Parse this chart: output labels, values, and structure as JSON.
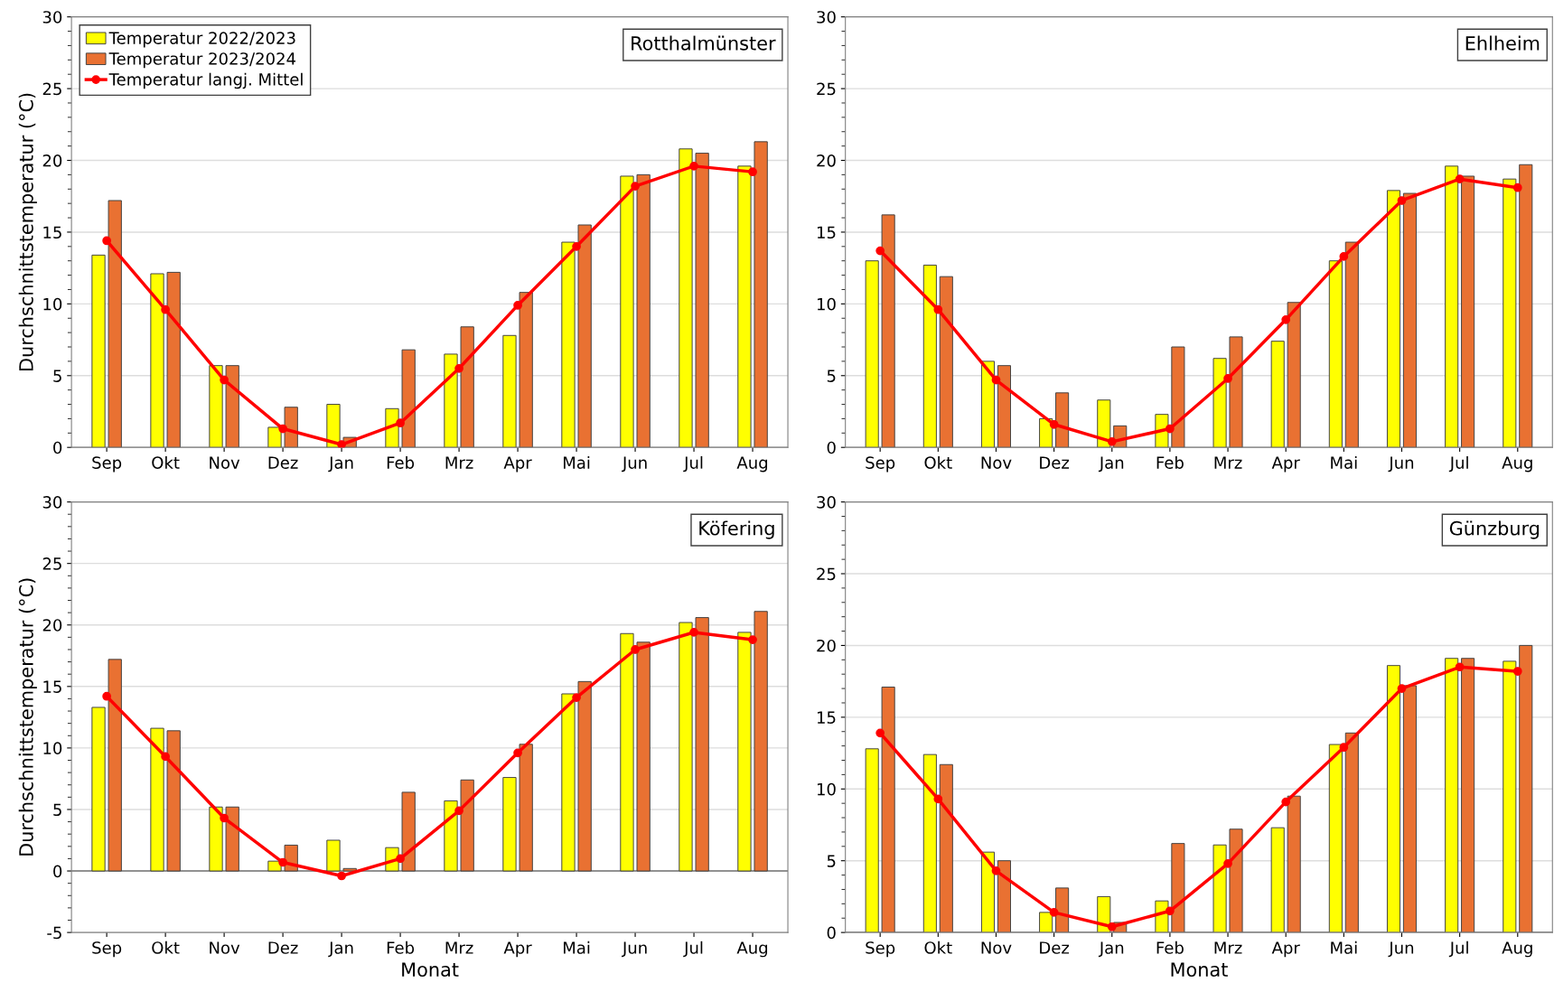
{
  "chart_data": [
    {
      "type": "bar",
      "categories": [
        "Sep",
        "Okt",
        "Nov",
        "Dez",
        "Jan",
        "Feb",
        "Mrz",
        "Apr",
        "Mai",
        "Jun",
        "Jul",
        "Aug"
      ],
      "ylabel": "Durchschnittstemperatur (°C)",
      "ylim": [
        0,
        30
      ],
      "yticks": [
        0,
        5,
        10,
        15,
        20,
        25,
        30
      ],
      "grid": "y",
      "legend": "top left",
      "annotations": [
        "Rotthalmünster"
      ],
      "series": [
        {
          "name": "Temperatur 2022/2023",
          "color": "#ffff00",
          "values": [
            13.4,
            12.1,
            5.7,
            1.4,
            3.0,
            2.7,
            6.5,
            7.8,
            14.3,
            18.9,
            20.8,
            19.6
          ]
        },
        {
          "name": "Temperatur 2023/2024",
          "color": "#e97132",
          "values": [
            17.2,
            12.2,
            5.7,
            2.8,
            0.7,
            6.8,
            8.4,
            10.8,
            15.5,
            19.0,
            20.5,
            21.3
          ]
        },
        {
          "name": "Temperatur langj. Mittel",
          "type": "line",
          "marker": "circle",
          "color": "#ff0000",
          "values": [
            14.4,
            9.6,
            4.7,
            1.3,
            0.2,
            1.7,
            5.5,
            9.9,
            14.0,
            18.2,
            19.6,
            19.2
          ]
        }
      ]
    },
    {
      "type": "bar",
      "categories": [
        "Sep",
        "Okt",
        "Nov",
        "Dez",
        "Jan",
        "Feb",
        "Mrz",
        "Apr",
        "Mai",
        "Jun",
        "Jul",
        "Aug"
      ],
      "ylim": [
        0,
        30
      ],
      "yticks": [
        0,
        5,
        10,
        15,
        20,
        25,
        30
      ],
      "grid": "y",
      "annotations": [
        "Ehlheim"
      ],
      "series": [
        {
          "color": "#ffff00",
          "values": [
            13.0,
            12.7,
            6.0,
            2.0,
            3.3,
            2.3,
            6.2,
            7.4,
            13.0,
            17.9,
            19.6,
            18.7
          ]
        },
        {
          "color": "#e97132",
          "values": [
            16.2,
            11.9,
            5.7,
            3.8,
            1.5,
            7.0,
            7.7,
            10.1,
            14.3,
            17.7,
            18.9,
            19.7
          ]
        },
        {
          "type": "line",
          "marker": "circle",
          "color": "#ff0000",
          "values": [
            13.7,
            9.6,
            4.7,
            1.6,
            0.4,
            1.3,
            4.8,
            8.9,
            13.3,
            17.2,
            18.7,
            18.1
          ]
        }
      ]
    },
    {
      "type": "bar",
      "categories": [
        "Sep",
        "Okt",
        "Nov",
        "Dez",
        "Jan",
        "Feb",
        "Mrz",
        "Apr",
        "Mai",
        "Jun",
        "Jul",
        "Aug"
      ],
      "xlabel": "Monat",
      "ylabel": "Durchschnittstemperatur (°C)",
      "ylim": [
        -5,
        30
      ],
      "yticks": [
        -5,
        0,
        5,
        10,
        15,
        20,
        25,
        30
      ],
      "grid": "y",
      "annotations": [
        "Köfering"
      ],
      "series": [
        {
          "color": "#ffff00",
          "values": [
            13.3,
            11.6,
            5.2,
            0.8,
            2.5,
            1.9,
            5.7,
            7.6,
            14.4,
            19.3,
            20.2,
            19.4
          ]
        },
        {
          "color": "#e97132",
          "values": [
            17.2,
            11.4,
            5.2,
            2.1,
            0.2,
            6.4,
            7.4,
            10.3,
            15.4,
            18.6,
            20.6,
            21.1
          ]
        },
        {
          "type": "line",
          "marker": "circle",
          "color": "#ff0000",
          "values": [
            14.2,
            9.3,
            4.3,
            0.7,
            -0.4,
            1.0,
            4.9,
            9.6,
            14.1,
            18.0,
            19.4,
            18.8
          ]
        }
      ]
    },
    {
      "type": "bar",
      "categories": [
        "Sep",
        "Okt",
        "Nov",
        "Dez",
        "Jan",
        "Feb",
        "Mrz",
        "Apr",
        "Mai",
        "Jun",
        "Jul",
        "Aug"
      ],
      "xlabel": "Monat",
      "ylim": [
        0,
        30
      ],
      "yticks": [
        0,
        5,
        10,
        15,
        20,
        25,
        30
      ],
      "grid": "y",
      "annotations": [
        "Günzburg"
      ],
      "series": [
        {
          "color": "#ffff00",
          "values": [
            12.8,
            12.4,
            5.6,
            1.4,
            2.5,
            2.2,
            6.1,
            7.3,
            13.1,
            18.6,
            19.1,
            18.9
          ]
        },
        {
          "color": "#e97132",
          "values": [
            17.1,
            11.7,
            5.0,
            3.1,
            0.7,
            6.2,
            7.2,
            9.5,
            13.9,
            17.2,
            19.1,
            20.0
          ]
        },
        {
          "type": "line",
          "marker": "circle",
          "color": "#ff0000",
          "values": [
            13.9,
            9.3,
            4.3,
            1.4,
            0.4,
            1.5,
            4.8,
            9.1,
            12.9,
            17.0,
            18.5,
            18.2
          ]
        }
      ]
    }
  ]
}
